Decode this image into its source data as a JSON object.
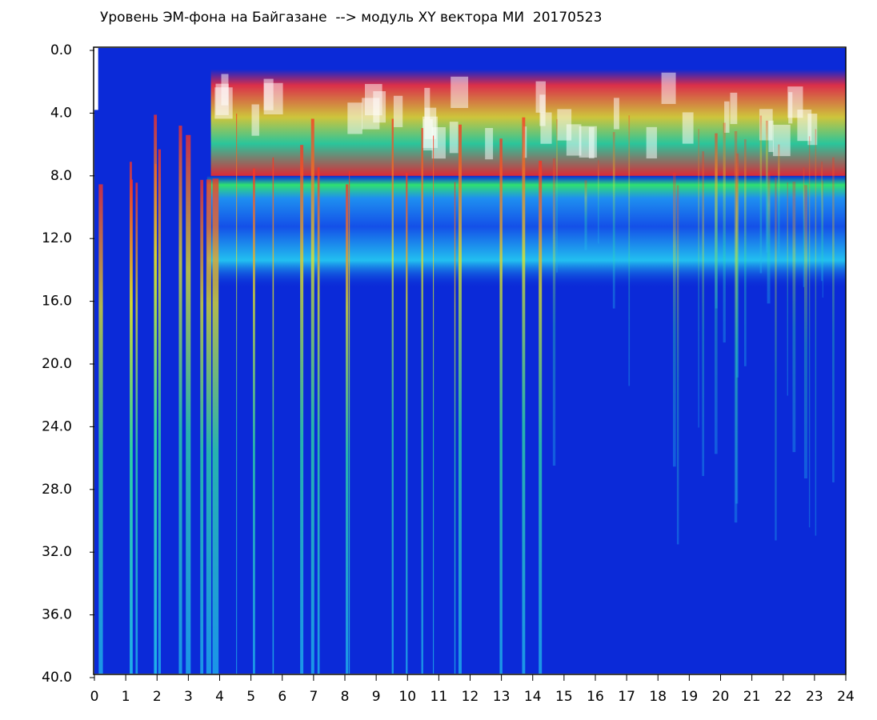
{
  "chart_data": {
    "type": "spectrogram",
    "title": "Уровень ЭМ-фона на Байгазане  --> модуль XY вектора МИ  20170523",
    "xlim": [
      0,
      24
    ],
    "xticks": [
      0,
      1,
      2,
      3,
      4,
      5,
      6,
      7,
      8,
      9,
      10,
      11,
      12,
      13,
      14,
      15,
      16,
      17,
      18,
      19,
      20,
      21,
      22,
      23,
      24
    ],
    "ylim": [
      0,
      40
    ],
    "yticks": [
      {
        "value": 0,
        "label": "0.0"
      },
      {
        "value": 4,
        "label": "4.0"
      },
      {
        "value": 8,
        "label": "8.0"
      },
      {
        "value": 12,
        "label": "12.0"
      },
      {
        "value": 16,
        "label": "16.0"
      },
      {
        "value": 20,
        "label": "20.0"
      },
      {
        "value": 24,
        "label": "24.0"
      },
      {
        "value": 28,
        "label": "28.0"
      },
      {
        "value": 32,
        "label": "32.0"
      },
      {
        "value": 36,
        "label": "36.0"
      },
      {
        "value": 40,
        "label": "40.0"
      }
    ],
    "y_inverted": true
  }
}
